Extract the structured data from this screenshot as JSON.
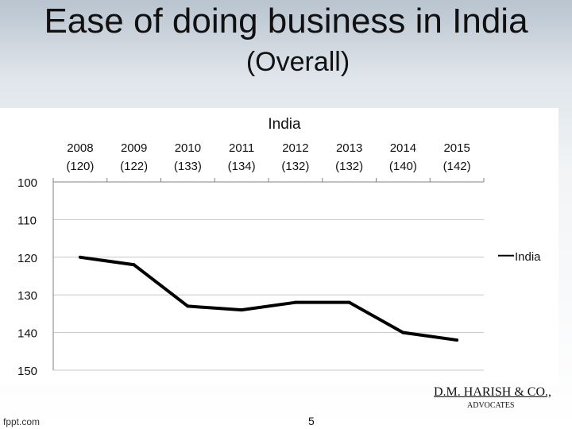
{
  "slide": {
    "title": "Ease of doing business in India",
    "subtitle": "(Overall)",
    "firm_name": "D.M. HARISH & CO.,",
    "firm_tag": "ADVOCATES",
    "page_number": "5",
    "footer_brand": "fppt.com"
  },
  "chart_data": {
    "type": "line",
    "title": "India",
    "categories": [
      "2008",
      "2009",
      "2010",
      "2011",
      "2012",
      "2013",
      "2014",
      "2015"
    ],
    "category_sublabels": [
      "(120)",
      "(122)",
      "(133)",
      "(134)",
      "(132)",
      "(132)",
      "(140)",
      "(142)"
    ],
    "series": [
      {
        "name": "India",
        "values": [
          120,
          122,
          133,
          134,
          132,
          132,
          140,
          142
        ]
      }
    ],
    "ylim": [
      100,
      150
    ],
    "y_inverted": true,
    "yticks": [
      100,
      110,
      120,
      130,
      140,
      150
    ],
    "xaxis_position": "top",
    "grid": true,
    "legend": "right",
    "colors": {
      "line": "#000000",
      "grid": "#c8c8c8",
      "axis": "#808080"
    }
  }
}
